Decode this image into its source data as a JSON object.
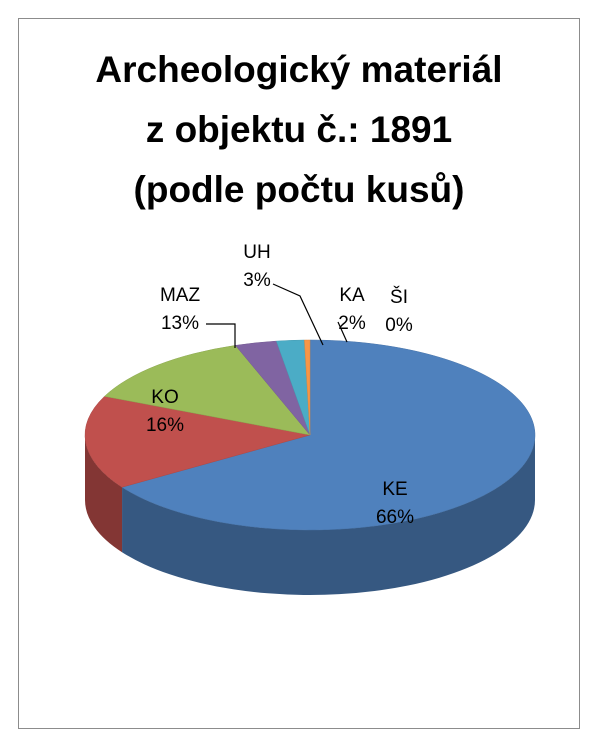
{
  "chart_data": {
    "type": "pie3d",
    "title": "Archeologický materiál\nz objektu č.: 1891\n(podle počtu kusů)",
    "categories": [
      "KE",
      "KO",
      "MAZ",
      "UH",
      "KA",
      "ŠI"
    ],
    "values": [
      66,
      16,
      13,
      3,
      2,
      0.4
    ],
    "value_labels": [
      "66%",
      "16%",
      "13%",
      "3%",
      "2%",
      "0%"
    ],
    "colors": [
      "#4f81bd",
      "#c0504d",
      "#9bbb59",
      "#8064a2",
      "#4bacc6",
      "#f79646"
    ]
  }
}
